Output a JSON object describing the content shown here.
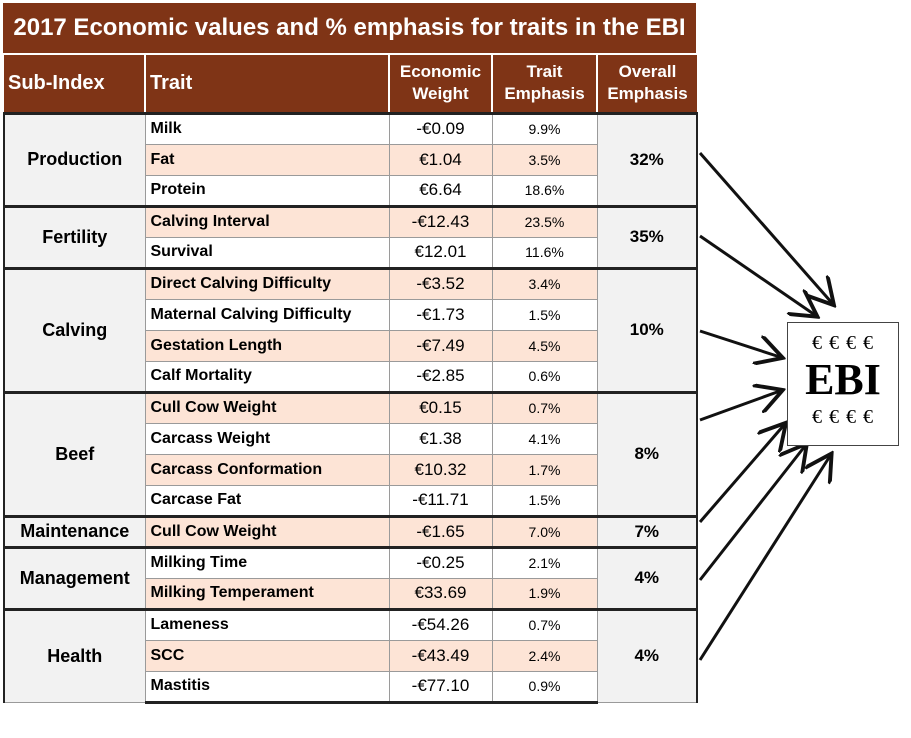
{
  "title": "2017 Economic values and % emphasis for traits in the EBI",
  "headers": {
    "sub_index": "Sub-Index",
    "trait": "Trait",
    "economic_weight_1": "Economic",
    "economic_weight_2": "Weight",
    "trait_emphasis_1": "Trait",
    "trait_emphasis_2": "Emphasis",
    "overall_emphasis_1": "Overall",
    "overall_emphasis_2": "Emphasis"
  },
  "groups": [
    {
      "name": "Production",
      "overall": "32%",
      "traits": [
        {
          "trait": "Milk",
          "weight": "-€0.09",
          "emphasis": "9.9%"
        },
        {
          "trait": "Fat",
          "weight": "€1.04",
          "emphasis": "3.5%"
        },
        {
          "trait": "Protein",
          "weight": "€6.64",
          "emphasis": "18.6%"
        }
      ]
    },
    {
      "name": "Fertility",
      "overall": "35%",
      "traits": [
        {
          "trait": "Calving Interval",
          "weight": "-€12.43",
          "emphasis": "23.5%"
        },
        {
          "trait": "Survival",
          "weight": "€12.01",
          "emphasis": "11.6%"
        }
      ]
    },
    {
      "name": "Calving",
      "overall": "10%",
      "traits": [
        {
          "trait": "Direct Calving Difficulty",
          "weight": "-€3.52",
          "emphasis": "3.4%"
        },
        {
          "trait": "Maternal Calving Difficulty",
          "weight": "-€1.73",
          "emphasis": "1.5%"
        },
        {
          "trait": "Gestation Length",
          "weight": "-€7.49",
          "emphasis": "4.5%"
        },
        {
          "trait": "Calf Mortality",
          "weight": "-€2.85",
          "emphasis": "0.6%"
        }
      ]
    },
    {
      "name": "Beef",
      "overall": "8%",
      "traits": [
        {
          "trait": "Cull Cow Weight",
          "weight": "€0.15",
          "emphasis": "0.7%"
        },
        {
          "trait": "Carcass Weight",
          "weight": "€1.38",
          "emphasis": "4.1%"
        },
        {
          "trait": "Carcass Conformation",
          "weight": "€10.32",
          "emphasis": "1.7%"
        },
        {
          "trait": "Carcase Fat",
          "weight": "-€11.71",
          "emphasis": "1.5%"
        }
      ]
    },
    {
      "name": "Maintenance",
      "overall": "7%",
      "traits": [
        {
          "trait": "Cull Cow Weight",
          "weight": "-€1.65",
          "emphasis": "7.0%"
        }
      ]
    },
    {
      "name": "Management",
      "overall": "4%",
      "traits": [
        {
          "trait": "Milking Time",
          "weight": "-€0.25",
          "emphasis": "2.1%"
        },
        {
          "trait": "Milking Temperament",
          "weight": "€33.69",
          "emphasis": "1.9%"
        }
      ]
    },
    {
      "name": "Health",
      "overall": "4%",
      "traits": [
        {
          "trait": "Lameness",
          "weight": "-€54.26",
          "emphasis": "0.7%"
        },
        {
          "trait": "SCC",
          "weight": "-€43.49",
          "emphasis": "2.4%"
        },
        {
          "trait": "Mastitis",
          "weight": "-€77.10",
          "emphasis": "0.9%"
        }
      ]
    }
  ],
  "ebi_box": {
    "euro_top": "€ € € €",
    "label": "EBI",
    "euro_bottom": "€ € € €"
  }
}
